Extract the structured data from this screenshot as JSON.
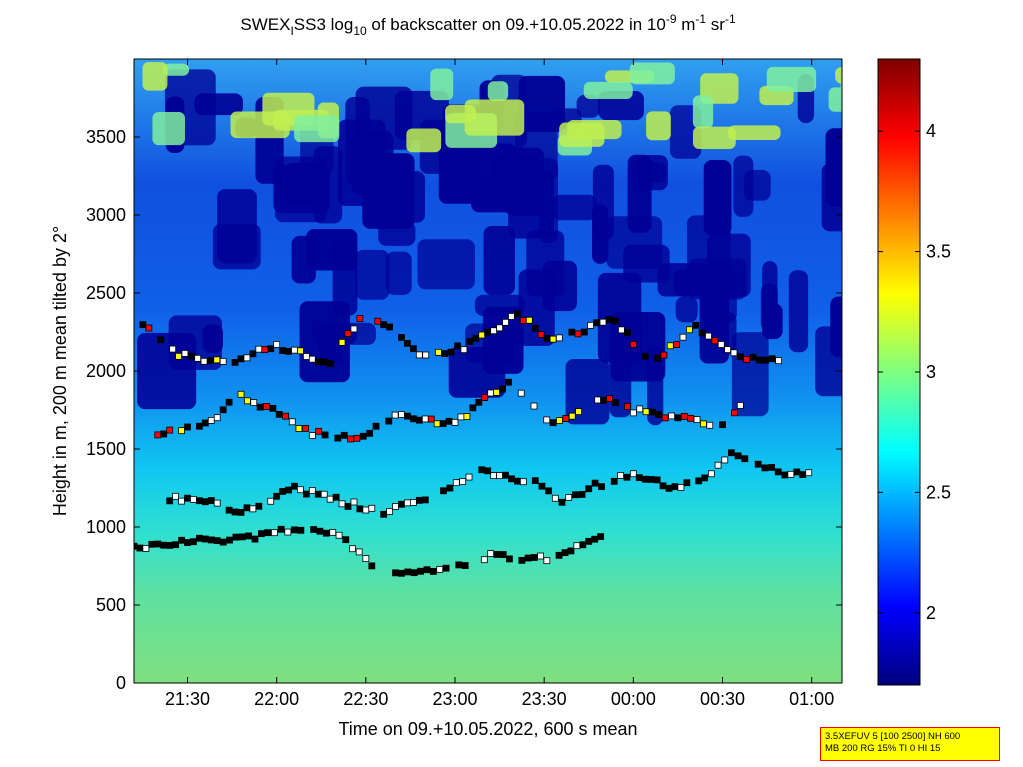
{
  "chart_data": {
    "type": "heatmap",
    "title": {
      "part1": "SWEX",
      "sub1": "I",
      "part2": "SS3 log",
      "sub2": "10",
      "part3": " of backscatter on 09.+10.05.2022 in 10",
      "sup1": "-9",
      "part4": " m",
      "sup2": "-1",
      "part5": " sr",
      "sup3": "-1"
    },
    "xlabel": "Time on 09.+10.05.2022, 600 s mean",
    "ylabel": "Height in m, 200 m mean tilted by 2°",
    "x_range_hours": [
      21.2,
      25.17
    ],
    "x_ticks": [
      {
        "label": "21:30",
        "hour": 21.5
      },
      {
        "label": "22:00",
        "hour": 22.0
      },
      {
        "label": "22:30",
        "hour": 22.5
      },
      {
        "label": "23:00",
        "hour": 23.0
      },
      {
        "label": "23:30",
        "hour": 23.5
      },
      {
        "label": "00:00",
        "hour": 24.0
      },
      {
        "label": "00:30",
        "hour": 24.5
      },
      {
        "label": "01:00",
        "hour": 25.0
      }
    ],
    "ylim": [
      0,
      4000
    ],
    "y_ticks": [
      0,
      500,
      1000,
      1500,
      2000,
      2500,
      3000,
      3500
    ],
    "colorbar": {
      "range": [
        1.7,
        4.3
      ],
      "ticks": [
        2,
        2.5,
        3,
        3.5,
        4
      ],
      "colormap": "jet"
    },
    "layers": [
      {
        "name": "surface aerosol layer",
        "points": [
          [
            21.2,
            870
          ],
          [
            21.4,
            900
          ],
          [
            21.7,
            920
          ],
          [
            21.95,
            950
          ],
          [
            22.1,
            1000
          ],
          [
            22.35,
            960
          ],
          [
            22.5,
            780
          ],
          [
            22.7,
            700
          ],
          [
            22.95,
            730
          ],
          [
            23.2,
            820
          ],
          [
            23.55,
            790
          ],
          [
            23.75,
            920
          ],
          [
            23.85,
            930
          ]
        ]
      },
      {
        "name": "middle layer",
        "points": [
          [
            21.4,
            1180
          ],
          [
            21.6,
            1170
          ],
          [
            21.8,
            1100
          ],
          [
            22.1,
            1250
          ],
          [
            22.4,
            1150
          ],
          [
            22.6,
            1100
          ],
          [
            22.9,
            1210
          ],
          [
            23.15,
            1350
          ],
          [
            23.45,
            1280
          ],
          [
            23.6,
            1150
          ],
          [
            23.75,
            1250
          ],
          [
            24.0,
            1350
          ],
          [
            24.2,
            1250
          ],
          [
            24.4,
            1300
          ],
          [
            24.55,
            1480
          ],
          [
            24.7,
            1400
          ],
          [
            24.85,
            1350
          ],
          [
            25.05,
            1320
          ]
        ]
      },
      {
        "name": "upper layer",
        "points": [
          [
            21.3,
            1600
          ],
          [
            21.6,
            1650
          ],
          [
            21.8,
            1850
          ],
          [
            22.05,
            1700
          ],
          [
            22.2,
            1600
          ],
          [
            22.45,
            1580
          ],
          [
            22.7,
            1720
          ],
          [
            23.0,
            1660
          ],
          [
            23.3,
            1930
          ],
          [
            23.55,
            1650
          ],
          [
            23.8,
            1830
          ],
          [
            24.0,
            1750
          ],
          [
            24.25,
            1700
          ],
          [
            24.5,
            1650
          ],
          [
            24.7,
            1920
          ]
        ]
      },
      {
        "name": "top layer",
        "points": [
          [
            21.25,
            2300
          ],
          [
            21.45,
            2100
          ],
          [
            21.7,
            2050
          ],
          [
            22.0,
            2160
          ],
          [
            22.3,
            2050
          ],
          [
            22.5,
            2400
          ],
          [
            22.8,
            2100
          ],
          [
            23.05,
            2150
          ],
          [
            23.35,
            2360
          ],
          [
            23.55,
            2200
          ],
          [
            23.9,
            2330
          ],
          [
            24.1,
            2050
          ],
          [
            24.35,
            2280
          ],
          [
            24.6,
            2100
          ],
          [
            24.85,
            2050
          ]
        ]
      }
    ]
  },
  "info_box": {
    "line1": "3.5XEFUV 5 [100 2500] NH 600",
    "line2": "MB 200 RG 15% TI 0 HI 15"
  }
}
